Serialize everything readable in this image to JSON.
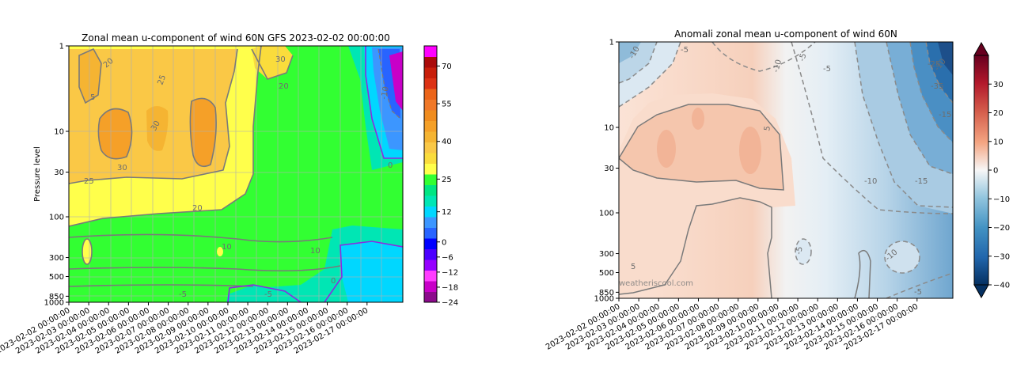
{
  "chart_data": [
    {
      "type": "heatmap",
      "title": "Zonal mean u-component of wind 60N GFS 2023-02-02 00:00:00",
      "ylabel": "Pressure level",
      "xlabel": "",
      "y_scale": "log",
      "y_inverted": true,
      "ylim": [
        1000,
        1
      ],
      "y_ticks": [
        "1",
        "10",
        "30",
        "100",
        "300",
        "500",
        "850",
        "1000"
      ],
      "y_tick_values": [
        1,
        10,
        30,
        100,
        300,
        500,
        850,
        1000
      ],
      "x_ticks": [
        "2023-02-02 00:00:00",
        "2023-02-03 00:00:00",
        "2023-02-04 00:00:00",
        "2023-02-05 00:00:00",
        "2023-02-06 00:00:00",
        "2023-02-07 00:00:00",
        "2023-02-08 00:00:00",
        "2023-02-09 00:00:00",
        "2023-02-10 00:00:00",
        "2023-02-11 00:00:00",
        "2023-02-12 00:00:00",
        "2023-02-13 00:00:00",
        "2023-02-14 00:00:00",
        "2023-02-15 00:00:00",
        "2023-02-16 00:00:00",
        "2023-02-17 00:00:00"
      ],
      "grid": true,
      "colorbar": {
        "ticks": [
          "70",
          "55",
          "40",
          "25",
          "12",
          "0",
          "−6",
          "−12",
          "−18",
          "−24"
        ],
        "tick_values": [
          70,
          55,
          40,
          25,
          12,
          0,
          -6,
          -12,
          -18,
          -24
        ],
        "range": [
          -24,
          78
        ],
        "colors": [
          "#8c0a8c",
          "#c800c8",
          "#ff3cff",
          "#9600ff",
          "#4b00ff",
          "#0000ff",
          "#2864ff",
          "#3c96ff",
          "#00d7ff",
          "#00e6b4",
          "#00e682",
          "#32ff32",
          "#ffff4b",
          "#fadc3c",
          "#fac846",
          "#f5b432",
          "#f5a028",
          "#f08c1e",
          "#f07828",
          "#eb6419",
          "#dc3214",
          "#c81e0a",
          "#aa0a0a",
          "#ff00ff"
        ]
      },
      "contour_labels": [
        "20",
        "30",
        "20",
        "25",
        "30",
        "30",
        "25",
        "20",
        "10",
        "-10",
        "5",
        "10",
        "-5",
        "-5",
        "0",
        "0"
      ]
    },
    {
      "type": "heatmap",
      "title": "Anomali zonal mean u-component of wind 60N",
      "ylabel": "",
      "xlabel": "",
      "y_scale": "log",
      "y_inverted": true,
      "ylim": [
        1000,
        1
      ],
      "y_ticks": [
        "1",
        "10",
        "30",
        "100",
        "300",
        "500",
        "850",
        "1000"
      ],
      "y_tick_values": [
        1,
        10,
        30,
        100,
        300,
        500,
        850,
        1000
      ],
      "x_ticks": [
        "2023-02-02 00:00:00",
        "2023-02-03 00:00:00",
        "2023-02-04 00:00:00",
        "2023-02-05 00:00:00",
        "2023-02-06 00:00:00",
        "2023-02-07 00:00:00",
        "2023-02-08 00:00:00",
        "2023-02-09 00:00:00",
        "2023-02-10 00:00:00",
        "2023-02-11 00:00:00",
        "2023-02-12 00:00:00",
        "2023-02-13 00:00:00",
        "2023-02-14 00:00:00",
        "2023-02-15 00:00:00",
        "2023-02-16 00:00:00",
        "2023-02-17 00:00:00"
      ],
      "grid": false,
      "watermark": "weatheriscool.com",
      "colorbar": {
        "ticks": [
          "30",
          "20",
          "10",
          "0",
          "−10",
          "−20",
          "−30",
          "−40"
        ],
        "tick_values": [
          30,
          20,
          10,
          0,
          -10,
          -20,
          -30,
          -40
        ],
        "range": [
          -40,
          40
        ],
        "colormap": "RdBu_r",
        "extend": "both"
      },
      "contour_labels": [
        "-5",
        "-10",
        "-5",
        "-10",
        "5",
        "-10",
        "-15",
        "-25",
        "-35",
        "-15",
        "-10",
        "-5",
        "5",
        "-10",
        "-5",
        "-5"
      ]
    }
  ]
}
